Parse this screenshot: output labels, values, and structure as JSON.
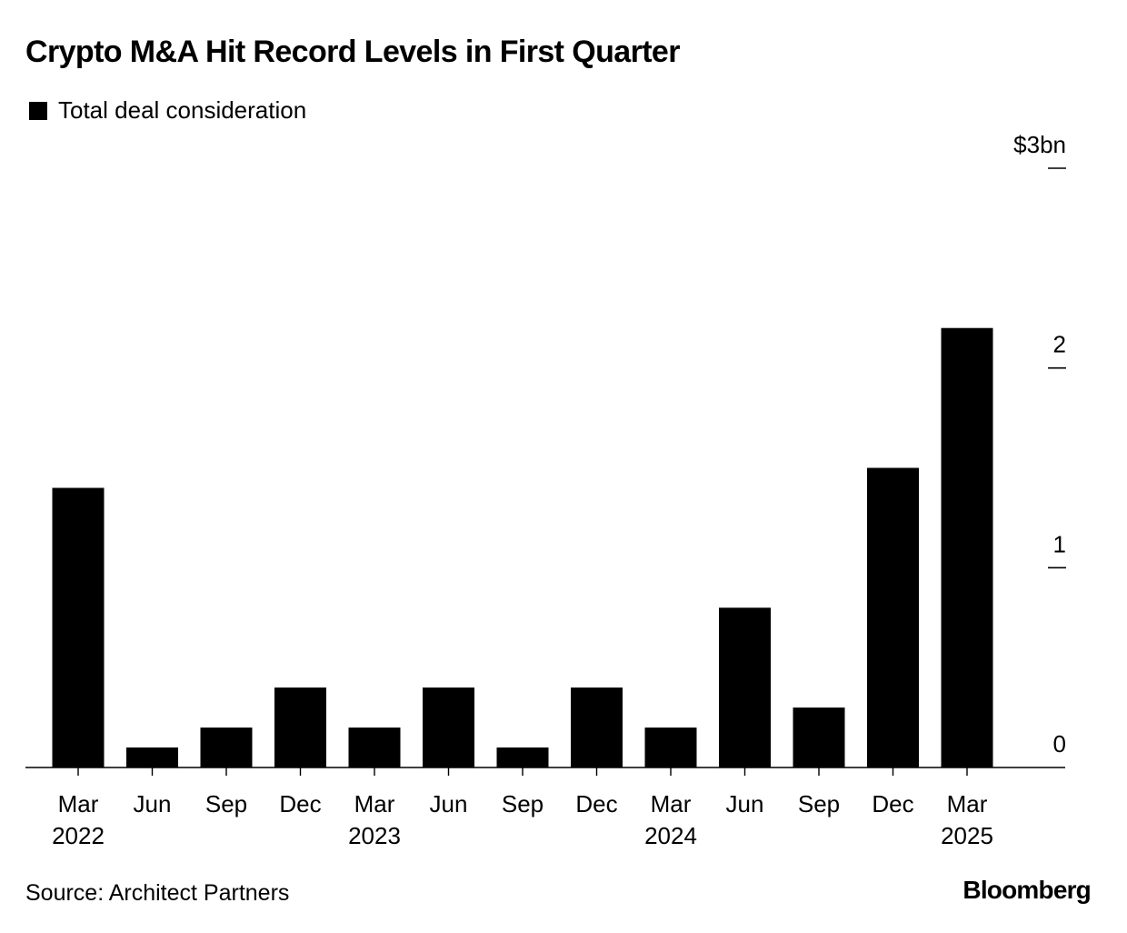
{
  "chart_data": {
    "type": "bar",
    "title": "Crypto M&A Hit Record Levels in First Quarter",
    "legend": {
      "entries": [
        "Total deal consideration"
      ],
      "placement": "top-left"
    },
    "categories": [
      "Mar",
      "Jun",
      "Sep",
      "Dec",
      "Mar",
      "Jun",
      "Sep",
      "Dec",
      "Mar",
      "Jun",
      "Sep",
      "Dec",
      "Mar"
    ],
    "year_labels": [
      "2022",
      "",
      "",
      "",
      "2023",
      "",
      "",
      "",
      "2024",
      "",
      "",
      "",
      "2025"
    ],
    "series": [
      {
        "name": "Total deal consideration",
        "color": "#000000",
        "values": [
          1.4,
          0.1,
          0.2,
          0.4,
          0.2,
          0.4,
          0.1,
          0.4,
          0.2,
          0.8,
          0.3,
          1.5,
          2.2
        ]
      }
    ],
    "y_axis": {
      "position": "right",
      "ylim": [
        0,
        3
      ],
      "ticks": [
        0,
        1,
        2,
        3
      ],
      "tick_labels": [
        "0",
        "1",
        "2",
        "$3bn"
      ]
    },
    "grid": false
  },
  "footer": {
    "source": "Source: Architect Partners",
    "brand": "Bloomberg"
  }
}
